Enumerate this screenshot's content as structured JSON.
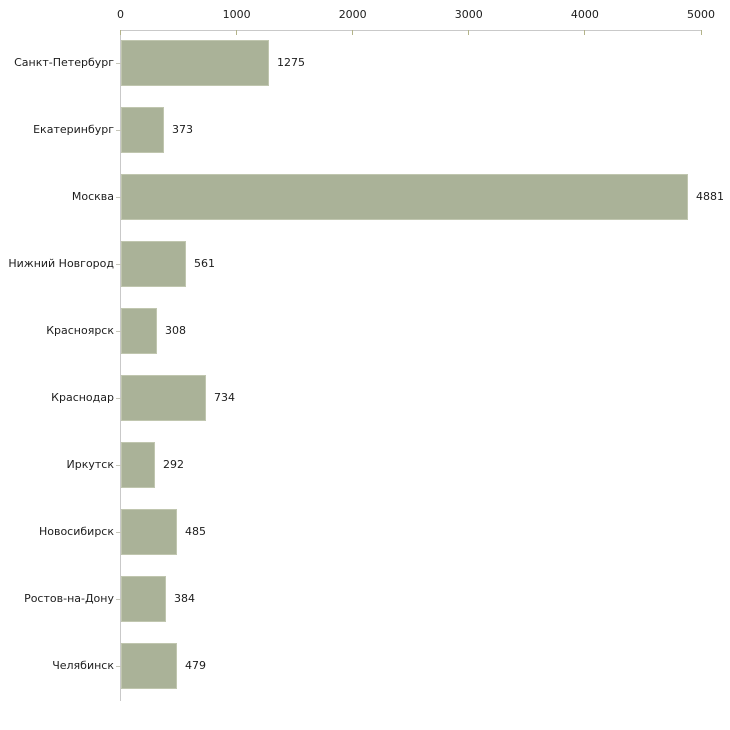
{
  "chart_data": {
    "type": "bar",
    "orientation": "horizontal",
    "title": "",
    "xlabel": "",
    "ylabel": "",
    "categories": [
      "Санкт-Петербург",
      "Екатеринбург",
      "Москва",
      "Нижний Новгород",
      "Красноярск",
      "Краснодар",
      "Иркутск",
      "Новосибирск",
      "Ростов-на-Дону",
      "Челябинск"
    ],
    "values": [
      1275,
      373,
      4881,
      561,
      308,
      734,
      292,
      485,
      384,
      479
    ],
    "value_labels": [
      "1275",
      "373",
      "4881",
      "561",
      "308",
      "734",
      "292",
      "485",
      "384",
      "479"
    ],
    "x_ticks": [
      0,
      1000,
      2000,
      3000,
      4000,
      5000
    ],
    "x_tick_labels": [
      "0",
      "1000",
      "2000",
      "3000",
      "4000",
      "5000"
    ],
    "xlim": [
      0,
      5000
    ],
    "grid": "off",
    "legend": "none",
    "axis_position": "top",
    "colors": {
      "bar_fill": "#aab298",
      "bar_border": "#c0c6af",
      "axis_line": "#c9c9c9",
      "x_tick_mark": "#b3b389",
      "y_tick_mark": "#c6c6ba",
      "text": "#1c1c1c",
      "background": "#ffffff"
    }
  }
}
